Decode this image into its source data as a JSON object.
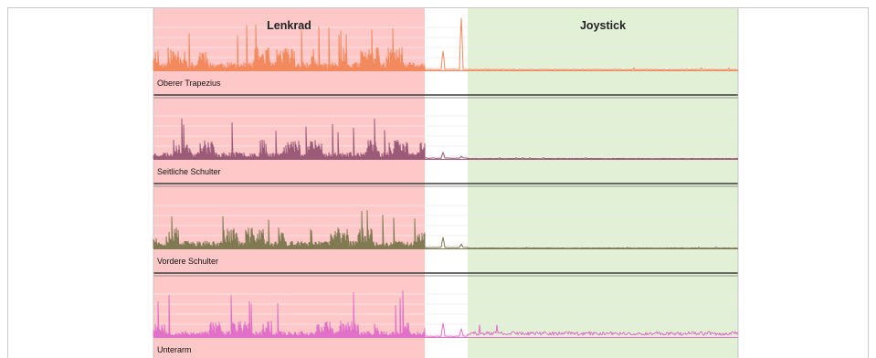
{
  "chart_data": {
    "type": "line",
    "phases": [
      {
        "name": "Lenkrad",
        "color": "#ffc8c8"
      },
      {
        "name": "",
        "color": "#ffffff"
      },
      {
        "name": "Joystick",
        "color": "#e2f1d6"
      }
    ],
    "tracks": [
      {
        "name": "Oberer Trapezius",
        "color": "#f28a5e",
        "seed": 11,
        "lenkrad_level": 0.42,
        "spike_level": 0.95,
        "pause_peaks": [
          0.35,
          0.95
        ],
        "joystick_level": 0.02
      },
      {
        "name": "Seitliche Schulter",
        "color": "#9a5a78",
        "seed": 23,
        "lenkrad_level": 0.35,
        "spike_level": 0.75,
        "pause_peaks": [
          0.12,
          0.05
        ],
        "joystick_level": 0.01
      },
      {
        "name": "Vordere Schulter",
        "color": "#7f7a52",
        "seed": 37,
        "lenkrad_level": 0.38,
        "spike_level": 0.8,
        "pause_peaks": [
          0.2,
          0.08
        ],
        "joystick_level": 0.01
      },
      {
        "name": "Unterarm",
        "color": "#e070c8",
        "seed": 53,
        "lenkrad_level": 0.3,
        "spike_level": 0.85,
        "pause_peaks": [
          0.25,
          0.15
        ],
        "joystick_level": 0.1
      }
    ],
    "x_label": "",
    "y_label": "",
    "grid": true,
    "legend": "none"
  }
}
